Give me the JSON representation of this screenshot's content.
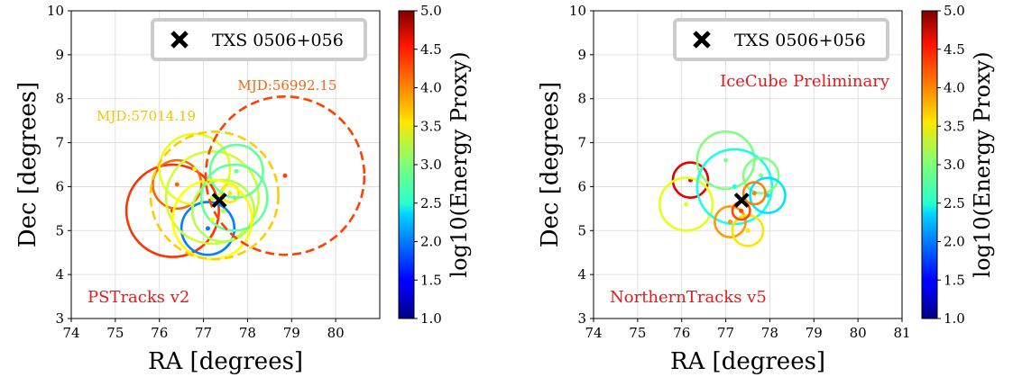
{
  "chart_data": [
    {
      "type": "scatter",
      "xlabel": "RA [degrees]",
      "ylabel": "Dec [degrees]",
      "xlim": [
        74,
        81
      ],
      "ylim": [
        3,
        10
      ],
      "xticks": [
        "74",
        "75",
        "76",
        "77",
        "78",
        "79",
        "80"
      ],
      "yticks": [
        "3",
        "4",
        "5",
        "6",
        "7",
        "8",
        "9",
        "10"
      ],
      "grid": true,
      "legend": {
        "location": "top-right",
        "entries": [
          "TXS 0506+056"
        ]
      },
      "source": {
        "name": "TXS 0506+056",
        "ra": 77.36,
        "dec": 5.69
      },
      "annotations": [
        {
          "text": "PSTracks v2",
          "color": "#e31a1c",
          "location": "bottom-left"
        },
        {
          "text": "MJD:56992.15",
          "color": "#f16913",
          "ra": 78.9,
          "dec": 8.2
        },
        {
          "text": "MJD:57014.19",
          "color": "#f5c400",
          "ra": 75.7,
          "dec": 7.5
        }
      ],
      "colorbar": {
        "label": "log10(Energy Proxy)",
        "min": 1.0,
        "max": 5.0,
        "ticks": [
          "1.0",
          "1.5",
          "2.0",
          "2.5",
          "3.0",
          "3.5",
          "4.0",
          "4.5",
          "5.0"
        ]
      },
      "events": [
        {
          "ra": 76.3,
          "dec": 5.45,
          "r": 1.05,
          "e": 4.3
        },
        {
          "ra": 76.4,
          "dec": 6.05,
          "r": 0.55,
          "e": 4.1
        },
        {
          "ra": 76.8,
          "dec": 6.4,
          "r": 0.8,
          "e": 3.4
        },
        {
          "ra": 77.1,
          "dec": 5.05,
          "r": 0.6,
          "e": 2.0
        },
        {
          "ra": 77.2,
          "dec": 5.75,
          "r": 1.05,
          "e": 3.3
        },
        {
          "ra": 77.45,
          "dec": 5.45,
          "r": 0.7,
          "e": 3.2
        },
        {
          "ra": 77.6,
          "dec": 5.85,
          "r": 0.2,
          "e": 3.6
        },
        {
          "ra": 77.75,
          "dec": 6.35,
          "r": 0.6,
          "e": 2.9
        },
        {
          "ra": 77.7,
          "dec": 5.75,
          "r": 0.75,
          "e": 2.9
        },
        {
          "ra": 77.2,
          "dec": 5.25,
          "r": 0.9,
          "e": 3.5
        }
      ],
      "highlighted_events": [
        {
          "ra": 78.85,
          "dec": 6.25,
          "r": 1.8,
          "e": 4.25,
          "label": "MJD:56992.15"
        },
        {
          "ra": 77.25,
          "dec": 5.8,
          "r": 1.45,
          "e": 3.7,
          "label": "MJD:57014.19"
        }
      ]
    },
    {
      "type": "scatter",
      "xlabel": "RA [degrees]",
      "ylabel": "Dec [degrees]",
      "xlim": [
        74,
        81
      ],
      "ylim": [
        3,
        10
      ],
      "xticks": [
        "74",
        "75",
        "76",
        "77",
        "78",
        "79",
        "80",
        "81"
      ],
      "yticks": [
        "3",
        "4",
        "5",
        "6",
        "7",
        "8",
        "9",
        "10"
      ],
      "grid": true,
      "legend": {
        "location": "top-right",
        "entries": [
          "TXS 0506+056"
        ]
      },
      "source": {
        "name": "TXS 0506+056",
        "ra": 77.36,
        "dec": 5.69
      },
      "annotations": [
        {
          "text": "NorthernTracks v5",
          "color": "#e31a1c",
          "location": "bottom-left"
        },
        {
          "text": "IceCube Preliminary",
          "color": "#e31a1c",
          "location": "top-right"
        }
      ],
      "colorbar": {
        "label": "log10(Energy Proxy)",
        "min": 1.0,
        "max": 5.0,
        "ticks": [
          "1.0",
          "1.5",
          "2.0",
          "2.5",
          "3.0",
          "3.5",
          "4.0",
          "4.5",
          "5.0"
        ]
      },
      "events": [
        {
          "ra": 76.2,
          "dec": 6.15,
          "r": 0.4,
          "e": 4.6
        },
        {
          "ra": 76.1,
          "dec": 5.6,
          "r": 0.6,
          "e": 3.4
        },
        {
          "ra": 77.0,
          "dec": 6.6,
          "r": 0.65,
          "e": 3.0
        },
        {
          "ra": 77.2,
          "dec": 6.0,
          "r": 0.85,
          "e": 2.6
        },
        {
          "ra": 77.8,
          "dec": 6.25,
          "r": 0.4,
          "e": 3.0
        },
        {
          "ra": 77.95,
          "dec": 5.8,
          "r": 0.4,
          "e": 2.4
        },
        {
          "ra": 77.1,
          "dec": 5.2,
          "r": 0.35,
          "e": 3.9
        },
        {
          "ra": 77.5,
          "dec": 5.0,
          "r": 0.35,
          "e": 3.6
        },
        {
          "ra": 77.65,
          "dec": 5.85,
          "r": 0.25,
          "e": 4.0
        },
        {
          "ra": 77.35,
          "dec": 5.45,
          "r": 0.2,
          "e": 4.2
        }
      ]
    }
  ]
}
